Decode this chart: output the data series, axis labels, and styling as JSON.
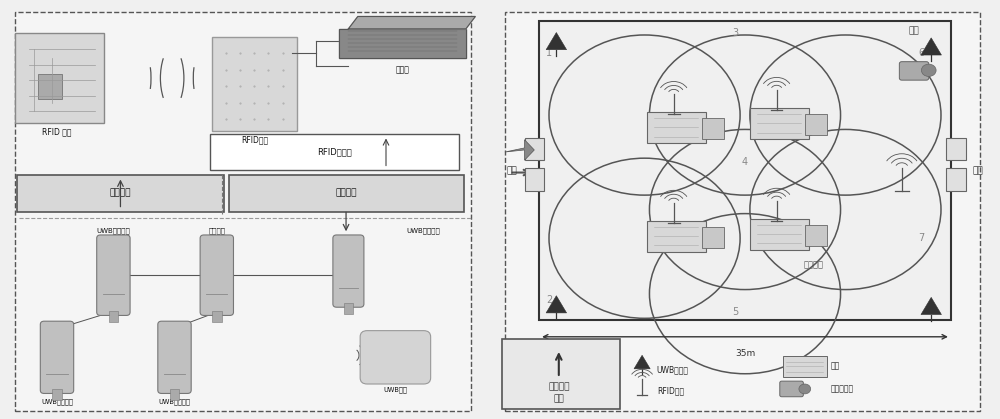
{
  "bg_color": "#f0f0f0",
  "left": {
    "rfid_tag_label": "RFID 标签",
    "rfid_antenna_label": "RFID天线",
    "reader_label": "读写器",
    "middleware_label": "RFID中间件",
    "zone_loc_label": "区域定位",
    "precise_loc_label": "精确定位",
    "uwb_master_label": "UWB主传感器",
    "uwb_slave_label": "UWB从传感器",
    "uwb_slave1_label": "UWB从传感器",
    "uwb_slave2_label": "UWB从传感器",
    "uwb_tag_label": "UWB标签",
    "time_sync_label": "时间同步"
  },
  "right": {
    "blind_label": "盲区",
    "entrance_label": "入口",
    "exit_label": "出口",
    "zone_id_label": "可识别区",
    "dimension_label": "35m",
    "legend_uwb": "UWB传感器",
    "legend_workstation": "工位",
    "legend_rfid": "RFID天线",
    "legend_handheld": "手持读写器",
    "layout_box_label": "定位设备\n布局"
  }
}
